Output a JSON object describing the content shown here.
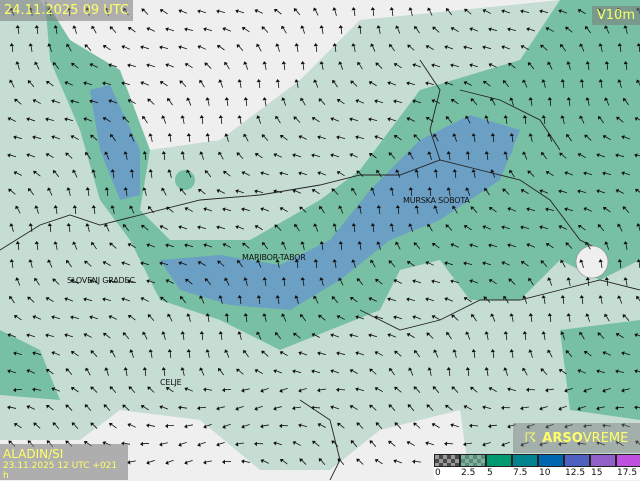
{
  "header": {
    "valid_time": "24.11.2025 09 UTC",
    "variable": "V10m"
  },
  "footer": {
    "model": "ALADIN/SI",
    "run": "23.11.2025 12 UTC +021 h"
  },
  "brand": {
    "icon": "satellite-dish-icon",
    "name_bold": "ARSO",
    "name_light": "VREME"
  },
  "cities": [
    "SLOVENJ GRADEC",
    "MARIBOR-TABOR",
    "MURSKA SOBOTA",
    "CELJE"
  ],
  "legend": {
    "ticks": [
      "0",
      "2.5",
      "5",
      "7.5",
      "10",
      "12.5",
      "15",
      "17.5"
    ],
    "colors": [
      "#4a4a4a",
      "#5a8a78",
      "#009a70",
      "#00838f",
      "#0066b0",
      "#5060c0",
      "#9060c8",
      "#c050e0"
    ]
  },
  "colors": {
    "land": "#efefef",
    "weak_wind": "#c6ddd4",
    "moderate_wind": "#78c0a4",
    "strong_wind": "#6c9fc4",
    "text": "#ffff66"
  }
}
